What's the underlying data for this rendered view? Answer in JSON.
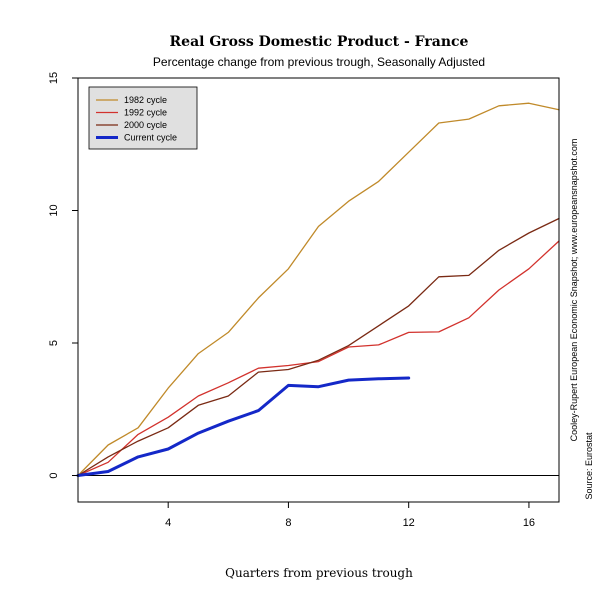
{
  "chart_data": {
    "type": "line",
    "title": "Real Gross Domestic Product - France",
    "subtitle": "Percentage change from previous trough, Seasonally Adjusted",
    "xlabel": "Quarters from previous trough",
    "ylabel": "",
    "xlim": [
      1,
      17
    ],
    "ylim": [
      -1,
      15
    ],
    "xticks": [
      4,
      8,
      12,
      16
    ],
    "yticks": [
      0,
      5,
      10,
      15
    ],
    "grid": false,
    "zero_line": true,
    "legend_position": "top-left",
    "series": [
      {
        "name": "1982 cycle",
        "color": "#c08a2a",
        "width": 1.3,
        "x": [
          1,
          2,
          3,
          4,
          5,
          6,
          7,
          8,
          9,
          10,
          11,
          12,
          13,
          14,
          15,
          16,
          17
        ],
        "y": [
          0,
          1.15,
          1.8,
          3.3,
          4.6,
          5.4,
          6.7,
          7.8,
          9.4,
          10.35,
          11.1,
          12.2,
          13.3,
          13.45,
          13.95,
          14.05,
          13.8
        ]
      },
      {
        "name": "1992 cycle",
        "color": "#d2322d",
        "width": 1.3,
        "x": [
          1,
          2,
          3,
          4,
          5,
          6,
          7,
          8,
          9,
          10,
          11,
          12,
          13,
          14,
          15,
          16,
          17
        ],
        "y": [
          0,
          0.5,
          1.55,
          2.2,
          3.0,
          3.5,
          4.05,
          4.15,
          4.3,
          4.85,
          4.93,
          5.4,
          5.42,
          5.95,
          7.0,
          7.8,
          8.85
        ]
      },
      {
        "name": "2000 cycle",
        "color": "#7a2a14",
        "width": 1.3,
        "x": [
          1,
          2,
          3,
          4,
          5,
          6,
          7,
          8,
          9,
          10,
          11,
          12,
          13,
          14,
          15,
          16,
          17
        ],
        "y": [
          0,
          0.7,
          1.3,
          1.8,
          2.65,
          3.0,
          3.9,
          4.0,
          4.35,
          4.9,
          5.65,
          6.4,
          7.5,
          7.55,
          8.5,
          9.15,
          9.7
        ]
      },
      {
        "name": "Current cycle",
        "color": "#1428c8",
        "width": 3,
        "x": [
          1,
          2,
          3,
          4,
          5,
          6,
          7,
          8,
          9,
          10,
          11,
          12
        ],
        "y": [
          0,
          0.15,
          0.7,
          1.0,
          1.6,
          2.05,
          2.45,
          3.4,
          3.35,
          3.6,
          3.65,
          3.68
        ]
      }
    ]
  },
  "side_text": {
    "credit": "Cooley-Rupert European Economic Snapshot; www.europeansnapshot.com",
    "source": "Source: Eurostat"
  }
}
